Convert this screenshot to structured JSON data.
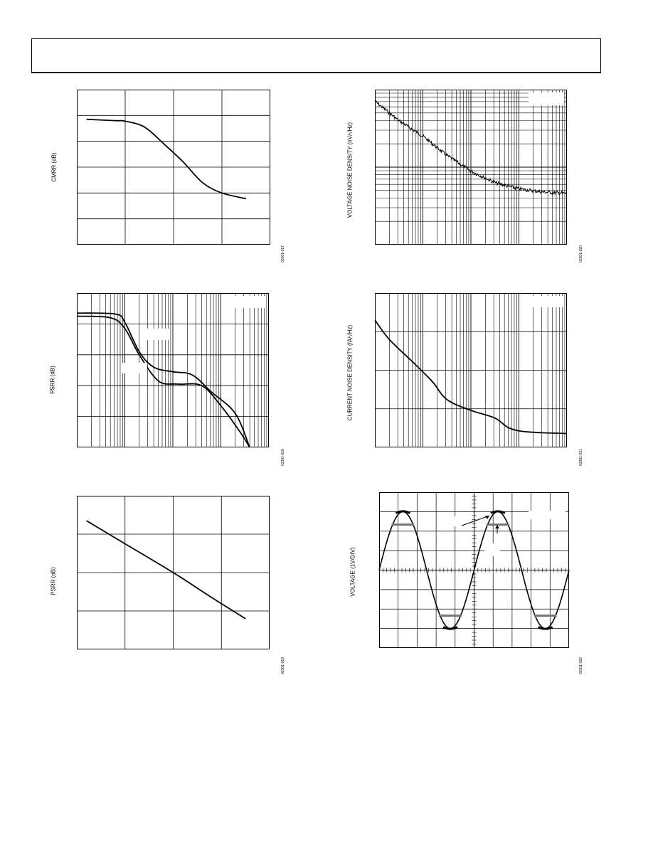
{
  "page": {
    "header_text": ""
  },
  "charts": {
    "cmrr": {
      "ylabel": "CMRR (dB)",
      "fignum": "02301-017"
    },
    "psrr_freq": {
      "ylabel": "PSRR (dB)",
      "fignum": "02301-018"
    },
    "psrr_lin": {
      "ylabel": "PSRR (dB)",
      "fignum": "02301-019"
    },
    "vnoise": {
      "ylabel": "VOLTAGE NOISE DENSITY (nV/√Hz)",
      "fignum": "02301-020"
    },
    "inoise": {
      "ylabel": "CURRENT NOISE DENSITY (fA/√Hz)",
      "fignum": "02301-021"
    },
    "scope": {
      "ylabel": "VOLTAGE (1V/DIV)",
      "fignum": "02301-022"
    }
  },
  "chart_data": [
    {
      "id": "cmrr",
      "type": "line",
      "xscale": "linear",
      "grid": true,
      "xlim": [
        0,
        4
      ],
      "ylim": [
        0,
        6
      ],
      "series": [
        {
          "x": [
            0.2,
            0.8,
            1.0,
            1.4,
            1.8,
            2.2,
            2.6,
            3.0,
            3.5
          ],
          "y": [
            4.85,
            4.8,
            4.78,
            4.55,
            3.9,
            3.2,
            2.4,
            2.0,
            1.78
          ]
        }
      ]
    },
    {
      "id": "psrr_freq",
      "type": "line",
      "xscale": "log",
      "grid": true,
      "xlim": [
        0,
        4
      ],
      "ylim": [
        0,
        5
      ],
      "series": [
        {
          "x": [
            0.0,
            0.8,
            1.0,
            1.3,
            1.6,
            2.0,
            2.4,
            2.8,
            3.3,
            3.6
          ],
          "y": [
            4.35,
            4.32,
            4.05,
            3.1,
            2.6,
            2.45,
            2.35,
            1.8,
            1.1,
            0.0
          ]
        },
        {
          "x": [
            0.0,
            0.7,
            1.0,
            1.3,
            1.7,
            2.1,
            2.6,
            3.0,
            3.4,
            3.6
          ],
          "y": [
            4.25,
            4.2,
            3.85,
            3.0,
            2.15,
            2.05,
            2.0,
            1.35,
            0.5,
            0.0
          ]
        }
      ]
    },
    {
      "id": "psrr_lin",
      "type": "line",
      "xscale": "linear",
      "grid": true,
      "xlim": [
        0,
        4
      ],
      "ylim": [
        0,
        4
      ],
      "series": [
        {
          "x": [
            0.2,
            1.0,
            2.0,
            2.8,
            3.5
          ],
          "y": [
            3.35,
            2.75,
            2.0,
            1.35,
            0.8
          ]
        }
      ]
    },
    {
      "id": "vnoise",
      "type": "line",
      "xscale": "log",
      "yscale": "log",
      "grid": true,
      "xlim": [
        0,
        4
      ],
      "ylim": [
        0,
        2
      ],
      "noisy": true,
      "series": [
        {
          "x": [
            0.0,
            0.5,
            1.0,
            1.5,
            2.0,
            2.5,
            3.0,
            3.5,
            4.0
          ],
          "y": [
            1.85,
            1.6,
            1.4,
            1.15,
            0.95,
            0.8,
            0.72,
            0.68,
            0.66
          ]
        }
      ]
    },
    {
      "id": "inoise",
      "type": "line",
      "xscale": "log",
      "yscale": "log",
      "grid": true,
      "xlim": [
        0,
        4
      ],
      "ylim": [
        0,
        2
      ],
      "series": [
        {
          "x": [
            0.0,
            0.3,
            0.8,
            1.2,
            1.5,
            2.0,
            2.5,
            2.8,
            3.2,
            4.0
          ],
          "y": [
            1.65,
            1.4,
            1.1,
            0.85,
            0.62,
            0.48,
            0.38,
            0.25,
            0.2,
            0.18
          ]
        }
      ]
    },
    {
      "id": "scope",
      "type": "line",
      "xscale": "linear",
      "grid": true,
      "xlim": [
        0,
        10
      ],
      "ylim": [
        -4,
        4
      ],
      "series": [
        {
          "function": "sine",
          "amplitude": 3.0,
          "period": 5.0
        }
      ]
    }
  ]
}
